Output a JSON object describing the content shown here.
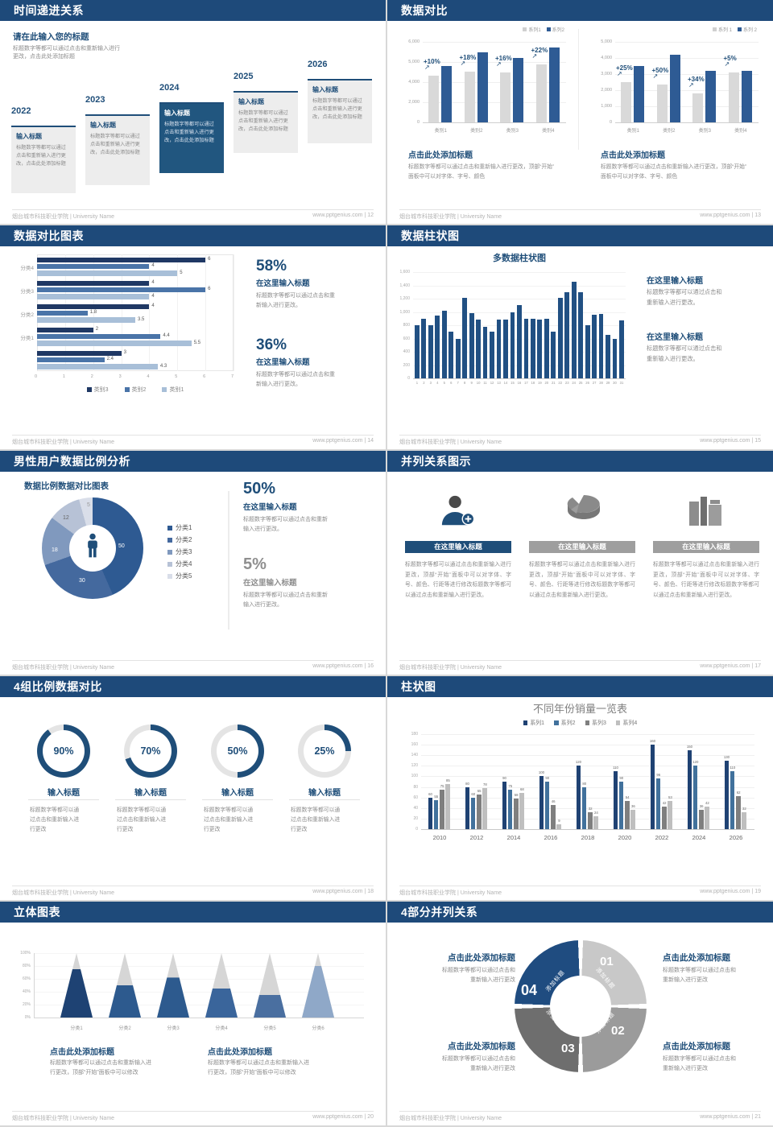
{
  "page": {
    "footer_left": "烟台城市科技职业学院 | University Name"
  },
  "colors": {
    "navy_header": "#1e4a7a",
    "accent": "#1f4e79",
    "bar_blue": "#2e5b94",
    "bar_gray": "#d9d9d9",
    "mid_blue": "#4a74a8",
    "light_blue": "#a8bfd8",
    "dark_navy": "#1f3864",
    "gray_text": "#8c8c8c"
  },
  "s12": {
    "header": "时间递进关系",
    "footer_right": "www.pptgenius.com | 12",
    "title": "请在此输入您的标题",
    "subtitle_l1": "标题数字等都可以通过点击和重新输入进行",
    "subtitle_l2": "更改，点击此处添加标题",
    "items": [
      {
        "year": "2022",
        "title": "输入标题",
        "body": "标题数字等都可以通过点击和重新输入进行更改，点击此处添加标题",
        "highlight": false
      },
      {
        "year": "2023",
        "title": "输入标题",
        "body": "标题数字等都可以通过点击和重新输入进行更改，点击此处添加标题",
        "highlight": false
      },
      {
        "year": "2024",
        "title": "输入标题",
        "body": "标题数字等都可以通过点击和重新输入进行更改，点击此处添加标题",
        "highlight": true
      },
      {
        "year": "2025",
        "title": "输入标题",
        "body": "标题数字等都可以通过点击和重新输入进行更改，点击此处添加标题",
        "highlight": false
      },
      {
        "year": "2026",
        "title": "输入标题",
        "body": "标题数字等都可以通过点击和重新输入进行更改，点击此处添加标题",
        "highlight": false
      }
    ]
  },
  "s13": {
    "header": "数据对比",
    "footer_right": "www.pptgenius.com | 13",
    "charts": [
      {
        "type": "bar",
        "legend": [
          "系列1",
          "系列2"
        ],
        "yticks": [
          "6,000",
          "5,000",
          "4,000",
          "2,000",
          "0"
        ],
        "ymax": 6000,
        "categories": [
          "类别1",
          "类别2",
          "类别3",
          "类别4"
        ],
        "series": [
          {
            "name": "系列1",
            "values": [
              3500,
              3800,
              3700,
              4300
            ]
          },
          {
            "name": "系列2",
            "values": [
              4200,
              5200,
              4800,
              5600
            ]
          }
        ],
        "annotations": [
          "+10%",
          "+18%",
          "+16%",
          "+22%"
        ],
        "title": "点击此处添加标题",
        "body_l1": "标题数字等都可以通过点击和重新输入进行更改，顶部“开始”",
        "body_l2": "面板中可以对字体、字号、颜色"
      },
      {
        "type": "bar",
        "legend": [
          "系列 1",
          "系列 2"
        ],
        "yticks": [
          "5,000",
          "4,000",
          "3,000",
          "2,000",
          "1,000",
          "0"
        ],
        "ymax": 5000,
        "categories": [
          "类别1",
          "类别2",
          "类别3",
          "类别4"
        ],
        "series": [
          {
            "name": "系列 1",
            "values": [
              2500,
              2350,
              1800,
              3100
            ]
          },
          {
            "name": "系列 2",
            "values": [
              3500,
              4200,
              3200,
              3200
            ]
          }
        ],
        "annotations": [
          "+25%",
          "+50%",
          "+34%",
          "+5%"
        ],
        "title": "点击此处添加标题",
        "body_l1": "标题数字等都可以通过点击和重新输入进行更改，顶部“开始”",
        "body_l2": "面板中可以对字体、字号、颜色"
      }
    ]
  },
  "s14": {
    "header": "数据对比图表",
    "footer_right": "www.pptgenius.com | 14",
    "chart_data": {
      "type": "bar",
      "orientation": "horizontal",
      "xmax": 7,
      "xticks": [
        "0",
        "1",
        "2",
        "3",
        "4",
        "5",
        "6",
        "7"
      ],
      "legend": [
        "类别3",
        "类别2",
        "类别1"
      ],
      "groups": [
        {
          "label": "分类4",
          "values": [
            6,
            4,
            5
          ]
        },
        {
          "label": "分类3",
          "values": [
            4,
            6,
            4
          ]
        },
        {
          "label": "分类2",
          "values": [
            4,
            1.8,
            3.5
          ]
        },
        {
          "label": "分类1",
          "values": [
            2,
            4.4,
            5.5
          ]
        },
        {
          "label": "",
          "values": [
            3,
            2.4,
            4.3
          ]
        }
      ]
    },
    "stats": [
      {
        "value": "58%",
        "title": "在这里输入标题",
        "body_l1": "标题数字等都可以通过点击和重",
        "body_l2": "新输入进行更改。"
      },
      {
        "value": "36%",
        "title": "在这里输入标题",
        "body_l1": "标题数字等都可以通过点击和重",
        "body_l2": "新输入进行更改。"
      }
    ]
  },
  "s15": {
    "header": "数据柱状图",
    "footer_right": "www.pptgenius.com | 15",
    "chart_data": {
      "type": "bar",
      "title": "多数据柱状图",
      "ymax": 1600,
      "yticks": [
        "1,600",
        "1,400",
        "1,200",
        "1,000",
        "800",
        "600",
        "400",
        "200",
        "0"
      ],
      "x": [
        "1",
        "2",
        "3",
        "4",
        "5",
        "6",
        "7",
        "8",
        "9",
        "10",
        "11",
        "12",
        "13",
        "14",
        "15",
        "16",
        "17",
        "18",
        "19",
        "20",
        "21",
        "22",
        "23",
        "24",
        "25",
        "26",
        "27",
        "28",
        "29",
        "30",
        "31"
      ],
      "values": [
        800,
        900,
        800,
        950,
        1020,
        700,
        600,
        1210,
        980,
        890,
        780,
        700,
        890,
        890,
        990,
        1100,
        900,
        900,
        880,
        900,
        700,
        1210,
        1300,
        1450,
        1300,
        800,
        960,
        970,
        660,
        600,
        870
      ]
    },
    "blocks": [
      {
        "title": "在这里输入标题",
        "body_l1": "标题数字等都可以通过点击和",
        "body_l2": "重新输入进行更改。"
      },
      {
        "title": "在这里输入标题",
        "body_l1": "标题数字等都可以通过点击和",
        "body_l2": "重新输入进行更改。"
      }
    ]
  },
  "s16": {
    "header": "男性用户数据比例分析",
    "footer_right": "www.pptgenius.com | 16",
    "chart_title": "数据比例数据对比图表",
    "chart_data": {
      "type": "pie",
      "donut": true,
      "labels": [
        "50",
        "30",
        "18",
        "12",
        "5"
      ],
      "values": [
        50,
        30,
        18,
        12,
        5
      ],
      "colors": [
        "#2e5a92",
        "#44699e",
        "#8099be",
        "#b7c2d6",
        "#d9dee9"
      ],
      "legend": [
        "分类1",
        "分类2",
        "分类3",
        "分类4",
        "分类5"
      ]
    },
    "stats": [
      {
        "value": "50%",
        "title": "在这里输入标题",
        "body_l1": "标题数字等都可以通过点击和重新",
        "body_l2": "输入进行更改。",
        "muted": false
      },
      {
        "value": "5%",
        "title": "在这里输入标题",
        "body_l1": "标题数字等都可以通过点击和重新",
        "body_l2": "输入进行更改。",
        "muted": true
      }
    ]
  },
  "s17": {
    "header": "并列关系图示",
    "footer_right": "www.pptgenius.com | 17",
    "columns": [
      {
        "icon": "person-plus-icon",
        "title": "在这里输入标题",
        "accent": true,
        "body": "标题数字等都可以通过点击和重新输入进行更改，顶部“开始”面板中可以对字体、字号、颜色、行距等进行修改标题数字等都可以通过点击和重新输入进行更改。"
      },
      {
        "icon": "pie-3d-icon",
        "title": "在这里输入标题",
        "accent": false,
        "body": "标题数字等都可以通过点击和重新输入进行更改，顶部“开始”面板中可以对字体、字号、颜色、行距等进行修改标题数字等都可以通过点击和重新输入进行更改。"
      },
      {
        "icon": "building-icon",
        "title": "在这里输入标题",
        "accent": false,
        "body": "标题数字等都可以通过点击和重新输入进行更改，顶部“开始”面板中可以对字体、字号、颜色、行距等进行修改标题数字等都可以通过点击和重新输入进行更改。"
      }
    ]
  },
  "s18": {
    "header": "4组比例数据对比",
    "footer_right": "www.pptgenius.com | 18",
    "gauges": [
      {
        "percent": 90,
        "label": "90%",
        "title": "输入标题",
        "body_l1": "标题数字等都可以通",
        "body_l2": "过点击和重新输入进",
        "body_l3": "行更改"
      },
      {
        "percent": 70,
        "label": "70%",
        "title": "输入标题",
        "body_l1": "标题数字等都可以通",
        "body_l2": "过点击和重新输入进",
        "body_l3": "行更改"
      },
      {
        "percent": 50,
        "label": "50%",
        "title": "输入标题",
        "body_l1": "标题数字等都可以通",
        "body_l2": "过点击和重新输入进",
        "body_l3": "行更改"
      },
      {
        "percent": 25,
        "label": "25%",
        "title": "输入标题",
        "body_l1": "标题数字等都可以通",
        "body_l2": "过点击和重新输入进",
        "body_l3": "行更改"
      }
    ]
  },
  "s19": {
    "header": "柱状图",
    "footer_right": "www.pptgenius.com | 19",
    "chart_data": {
      "type": "bar",
      "title": "不同年份销量一览表",
      "ymax": 180,
      "yticks": [
        "180",
        "160",
        "140",
        "120",
        "100",
        "80",
        "60",
        "40",
        "20",
        "0"
      ],
      "legend": [
        "系列1",
        "系列2",
        "系列3",
        "系列4"
      ],
      "series_colors": [
        "#1f4273",
        "#41719c",
        "#7f7f7f",
        "#bfbfbf"
      ],
      "categories": [
        "2010",
        "2012",
        "2014",
        "2016",
        "2018",
        "2020",
        "2022",
        "2024",
        "2026"
      ],
      "series": [
        {
          "name": "系列1",
          "values": [
            60,
            80,
            90,
            100,
            120,
            110,
            160,
            150,
            130
          ]
        },
        {
          "name": "系列2",
          "values": [
            55,
            60,
            75,
            90,
            80,
            90,
            96,
            120,
            110
          ]
        },
        {
          "name": "系列3",
          "values": [
            75,
            65,
            58,
            46,
            32,
            54,
            42,
            36,
            62
          ]
        },
        {
          "name": "系列4",
          "values": [
            85,
            78,
            68,
            9,
            24,
            36,
            53,
            42,
            32
          ]
        }
      ]
    }
  },
  "s20": {
    "header": "立体图表",
    "footer_right": "www.pptgenius.com | 20",
    "chart_data": {
      "type": "bar",
      "style": "cone-3d",
      "categories": [
        "分类1",
        "分类2",
        "分类3",
        "分类4",
        "分类5",
        "分类6"
      ],
      "fill_percent": [
        75,
        50,
        62,
        45,
        35,
        80
      ],
      "cone_colors": [
        "#1e4273",
        "#2d5a8e",
        "#2d5a8e",
        "#3a659b",
        "#4a6fa0",
        "#8fa8c8"
      ],
      "yticks": [
        "100%",
        "80%",
        "60%",
        "40%",
        "20%",
        "0%"
      ]
    },
    "blocks": [
      {
        "title": "点击此处添加标题",
        "body_l1": "标题数字等都可以通过点击和重新输入进",
        "body_l2": "行更改，顶部“开始”面板中可以修改"
      },
      {
        "title": "点击此处添加标题",
        "body_l1": "标题数字等都可以通过点击和重新输入进",
        "body_l2": "行更改，顶部“开始”面板中可以修改"
      }
    ]
  },
  "s21": {
    "header": "4部分并列关系",
    "footer_right": "www.pptgenius.com | 21",
    "ring": {
      "segments": [
        {
          "num": "01",
          "label": "添加标题",
          "color": "#c8c8c8"
        },
        {
          "num": "02",
          "label": "添加标题",
          "color": "#9b9b9b"
        },
        {
          "num": "03",
          "label": "添加标题",
          "color": "#6e6e6e"
        },
        {
          "num": "04",
          "label": "添加标题",
          "color": "#1f4c80"
        }
      ]
    },
    "blocks": [
      {
        "pos": "tl",
        "title": "点击此处添加标题",
        "body_l1": "标题数字等都可以通过点击和",
        "body_l2": "重新输入进行更改"
      },
      {
        "pos": "tr",
        "title": "点击此处添加标题",
        "body_l1": "标题数字等都可以通过点击和",
        "body_l2": "重新输入进行更改"
      },
      {
        "pos": "bl",
        "title": "点击此处添加标题",
        "body_l1": "标题数字等都可以通过点击和",
        "body_l2": "重新输入进行更改"
      },
      {
        "pos": "br",
        "title": "点击此处添加标题",
        "body_l1": "标题数字等都可以通过点击和",
        "body_l2": "重新输入进行更改"
      }
    ]
  }
}
